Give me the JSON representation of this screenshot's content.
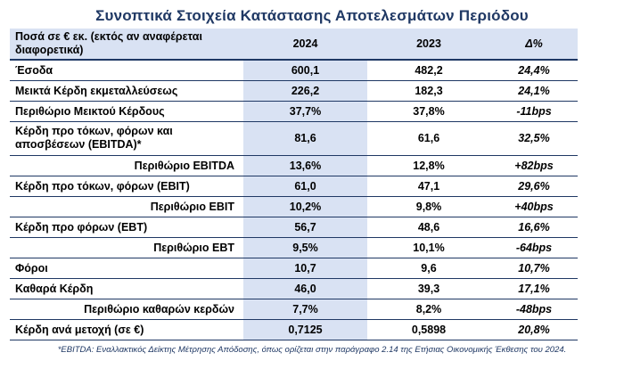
{
  "title": "Συνοπτικά Στοιχεία Κατάστασης Αποτελεσμάτων Περιόδου",
  "header": {
    "label": "Ποσά σε € εκ. (εκτός αν αναφέρεται διαφορετικά)",
    "col_2024": "2024",
    "col_2023": "2023",
    "col_delta": "Δ%"
  },
  "rows": [
    {
      "label": "Έσοδα",
      "v2024": "600,1",
      "v2023": "482,2",
      "delta": "24,4%"
    },
    {
      "label": "Μεικτά Κέρδη εκμεταλλεύσεως",
      "v2024": "226,2",
      "v2023": "182,3",
      "delta": "24,1%"
    },
    {
      "label": "Περιθώριο Μεικτού Κέρδους",
      "v2024": "37,7%",
      "v2023": "37,8%",
      "delta": "-11bps"
    },
    {
      "label": "Κέρδη προ τόκων, φόρων και αποσβέσεων (EBITDA)*",
      "v2024": "81,6",
      "v2023": "61,6",
      "delta": "32,5%"
    },
    {
      "label": "Περιθώριο EBITDA",
      "v2024": "13,6%",
      "v2023": "12,8%",
      "delta": "+82bps"
    },
    {
      "label": "Κέρδη προ τόκων, φόρων (EBIT)",
      "v2024": "61,0",
      "v2023": "47,1",
      "delta": "29,6%"
    },
    {
      "label": "Περιθώριο EBIT",
      "v2024": "10,2%",
      "v2023": "9,8%",
      "delta": "+40bps"
    },
    {
      "label": "Κέρδη προ φόρων (EBT)",
      "v2024": "56,7",
      "v2023": "48,6",
      "delta": "16,6%"
    },
    {
      "label": "Περιθώριο EBT",
      "v2024": "9,5%",
      "v2023": "10,1%",
      "delta": "-64bps"
    },
    {
      "label": "Φόροι",
      "v2024": "10,7",
      "v2023": "9,6",
      "delta": "10,7%"
    },
    {
      "label": "Καθαρά Κέρδη",
      "v2024": "46,0",
      "v2023": "39,3",
      "delta": "17,1%"
    },
    {
      "label": "Περιθώριο καθαρών κερδών",
      "v2024": "7,7%",
      "v2023": "8,2%",
      "delta": "-48bps"
    },
    {
      "label": "Κέρδη ανά μετοχή (σε €)",
      "v2024": "0,7125",
      "v2023": "0,5898",
      "delta": "20,8%"
    }
  ],
  "footnote": "*EBITDA: Εναλλακτικός Δείκτης Μέτρησης Απόδοσης, όπως ορίζεται στην παράγραφο 2.14 της Ετήσιας Οικονομικής Έκθεσης του 2024."
}
